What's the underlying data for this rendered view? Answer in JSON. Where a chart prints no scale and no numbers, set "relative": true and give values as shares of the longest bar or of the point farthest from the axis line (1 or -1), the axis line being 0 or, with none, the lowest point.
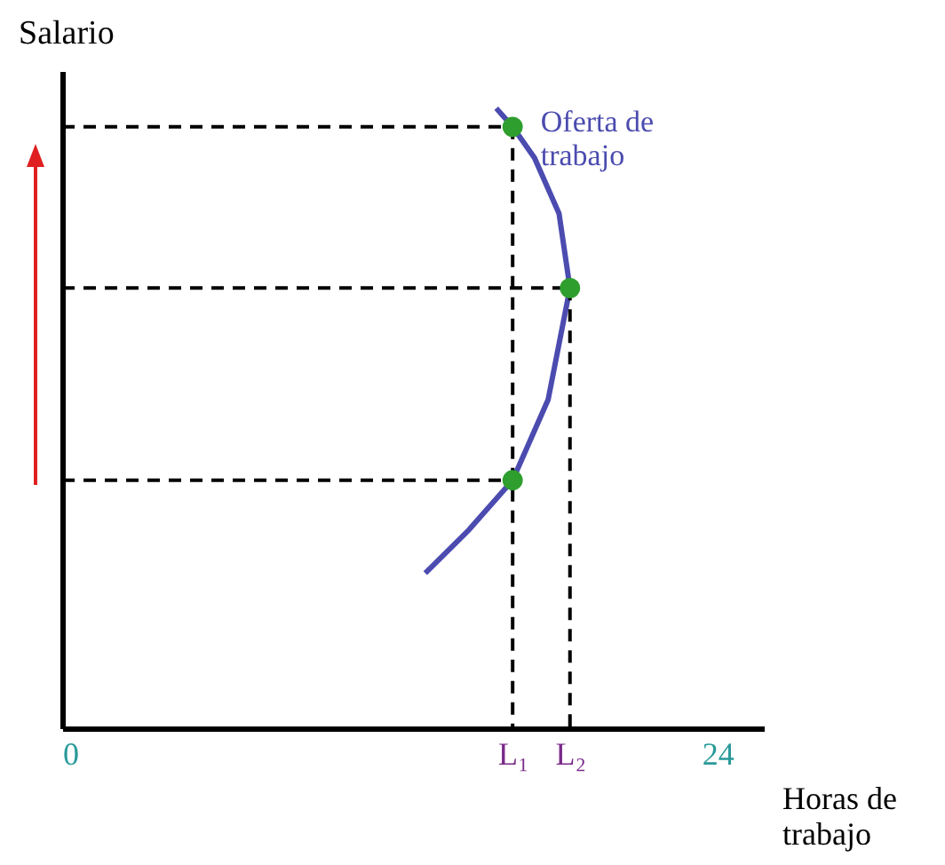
{
  "chart_data": {
    "type": "line",
    "xlabel": "Horas de trabajo",
    "ylabel": "Salario",
    "relative": true,
    "grid": false,
    "xlim": [
      0,
      25.7
    ],
    "xticks": [
      0,
      {
        "value": 16.5,
        "label": "L₁"
      },
      {
        "value": 18.6,
        "label": "L₂"
      },
      24
    ],
    "series": [
      {
        "name": "Oferta de trabajo",
        "color": "#4b4bb0",
        "marker": "none",
        "x": [
          13.3,
          14.9,
          16.5,
          17.8,
          18.6,
          18.2,
          17.3,
          16.5,
          15.9
        ],
        "values": [
          0.25,
          0.32,
          0.4,
          0.53,
          0.71,
          0.83,
          0.92,
          0.97,
          1
        ]
      },
      {
        "type": "line",
        "color": "#000000",
        "line_style": "dashed",
        "marker": "none",
        "x": [
          0,
          16.5
        ],
        "values": [
          0.97,
          0.97
        ]
      },
      {
        "type": "line",
        "color": "#000000",
        "line_style": "dashed",
        "marker": "none",
        "x": [
          0,
          18.6
        ],
        "values": [
          0.71,
          0.71
        ]
      },
      {
        "type": "line",
        "color": "#000000",
        "line_style": "dashed",
        "marker": "none",
        "x": [
          0,
          16.5
        ],
        "values": [
          0.4,
          0.4
        ]
      },
      {
        "type": "line",
        "color": "#000000",
        "line_style": "dashed",
        "marker": "none",
        "x": [
          16.5,
          16.5
        ],
        "values": [
          0.97,
          0
        ]
      },
      {
        "type": "line",
        "color": "#000000",
        "line_style": "dashed",
        "marker": "none",
        "x": [
          18.6,
          18.6
        ],
        "values": [
          0.71,
          0
        ]
      },
      {
        "type": "scatter",
        "color": "#2e9e2e",
        "marker": "circle",
        "x": [
          16.5,
          18.6,
          16.5
        ],
        "values": [
          0.4,
          0.71,
          0.97
        ]
      }
    ]
  }
}
